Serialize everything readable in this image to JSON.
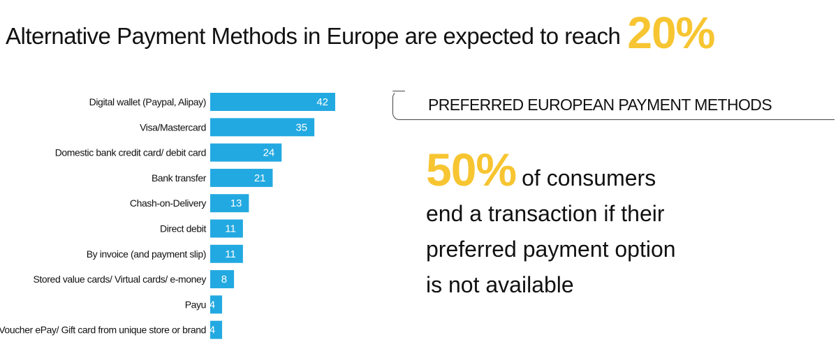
{
  "title": {
    "text": "Alternative Payment Methods in Europe are expected to reach",
    "highlight": "20%"
  },
  "panel": {
    "header": "PREFERRED EUROPEAN PAYMENT METHODS",
    "stat": "50%",
    "line1": "of consumers",
    "line2": "end a transaction if their",
    "line3": "preferred payment option",
    "line4": "is not available"
  },
  "colors": {
    "bar": "#23a9e1",
    "accent": "#f7c531"
  },
  "chart_data": {
    "type": "bar",
    "orientation": "horizontal",
    "title": "",
    "xlabel": "",
    "ylabel": "",
    "categories": [
      "Digital wallet (Paypal, Alipay)",
      "Visa/Mastercard",
      "Domestic bank credit card/ debit card",
      "Bank transfer",
      "Chash-on-Delivery",
      "Direct debit",
      "By invoice (and payment slip)",
      "Stored value cards/ Virtual cards/ e-money",
      "Payu",
      "Voucher ePay/ Gift card from unique store or brand"
    ],
    "values": [
      42,
      35,
      24,
      21,
      13,
      11,
      11,
      8,
      4,
      4
    ],
    "xlim": [
      0,
      42
    ],
    "grid": false
  }
}
